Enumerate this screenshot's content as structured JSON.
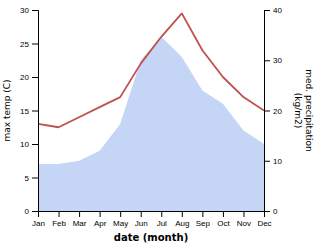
{
  "chart_data": {
    "type": "line",
    "x_label": "date (month)",
    "y_label": "max temp (C)",
    "y2_label": "med. precipitation\n(kg/m2)",
    "categories": [
      "Jan",
      "Feb",
      "Mar",
      "Apr",
      "May",
      "Jun",
      "Jul",
      "Aug",
      "Sep",
      "Oct",
      "Nov",
      "Dec"
    ],
    "series": [
      {
        "type": "area",
        "color": "#c5d5f5",
        "values": [
          7.0,
          7.0,
          7.5,
          9.0,
          13.0,
          22.5,
          26.0,
          23.0,
          18.0,
          16.0,
          12.0,
          10.0
        ]
      },
      {
        "type": "line",
        "color": "#c0504d",
        "values": [
          13.0,
          12.5,
          14.0,
          15.5,
          17.0,
          22.0,
          26.0,
          29.5,
          24.0,
          20.0,
          17.0,
          15.0
        ]
      }
    ],
    "ylim": [
      0,
      30
    ],
    "yticks": [
      0,
      5,
      10,
      15,
      20,
      25,
      30
    ],
    "y2lim": [
      0,
      40
    ],
    "y2ticks": [
      0,
      10,
      20,
      30,
      40
    ],
    "grid": false
  }
}
